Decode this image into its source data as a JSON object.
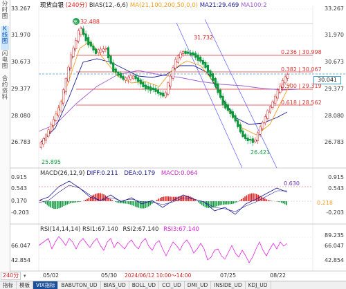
{
  "sidebar": [
    {
      "label": "分时图",
      "active": false
    },
    {
      "label": "K线图",
      "active": true
    },
    {
      "label": "闪电图",
      "active": false
    },
    {
      "label": "合约资料",
      "active": false
    }
  ],
  "main": {
    "title": "现货白银",
    "period": "240分",
    "bias": "BIAS(12,-6,6)",
    "ma": "MA(21,100,200,50,0,0)",
    "ma21": "MA21:29.469",
    "ma100": "MA100:2",
    "price_axis": [
      "33.267",
      "31.970",
      "30.673",
      "29.377",
      "28.080",
      "26.783"
    ],
    "price_axis_left": [
      "33.267",
      "31.970",
      "30.673",
      "29.377",
      "28.080",
      "26.783"
    ],
    "current_price": "30.041",
    "annotations": {
      "high": "32.488",
      "mid_high": "31.732",
      "low": "25.895",
      "low2": "26.421"
    },
    "fib": [
      {
        "label": "0.236 | 30.998"
      },
      {
        "label": "0.382 | 30.067"
      },
      {
        "label": "0.500 | 29.319"
      },
      {
        "label": "0.618 | 28.562"
      }
    ],
    "fib_badge": "高"
  },
  "macd": {
    "label": "MACD(26,12,9)",
    "diff": "DIFF:0.211",
    "dea": "DEA:0.179",
    "macd": "MACD:0.064",
    "axis": [
      "0.915",
      "0.543",
      "0.170",
      "-0.203"
    ],
    "right_label": "0.630",
    "right_value": "0.218"
  },
  "rsi": {
    "label": "RSI(14,14,14)",
    "rsi1": "RSI1:67.140",
    "rsi2": "RSI2:67.140",
    "rsi3": "RSI3:67.140",
    "axis": [
      "89.235",
      "66.047",
      "42.854"
    ]
  },
  "xaxis": {
    "labels": [
      "05/02",
      "05/30",
      "07/25",
      "08/22"
    ],
    "range": "2024/06/12 10:00～14:00",
    "period_select": "240分"
  },
  "tabs": [
    "指标",
    "模板",
    "VIX指标",
    "BABUTON_UD",
    "BIAS_UD",
    "BOLL_UD",
    "CCI_UD",
    "DMI_UD",
    "INSIDE_UD",
    "KDJ_UD"
  ],
  "active_tab_index": 2,
  "colors": {
    "up": "#e02020",
    "down": "#0a9a3c",
    "ma_orange": "#f0a020",
    "ma_blue": "#1a1a90",
    "ma_purple": "#a060d0",
    "fib_red": "#e03030",
    "trend_blue": "#6a6aff",
    "rsi_magenta": "#e020e0"
  }
}
